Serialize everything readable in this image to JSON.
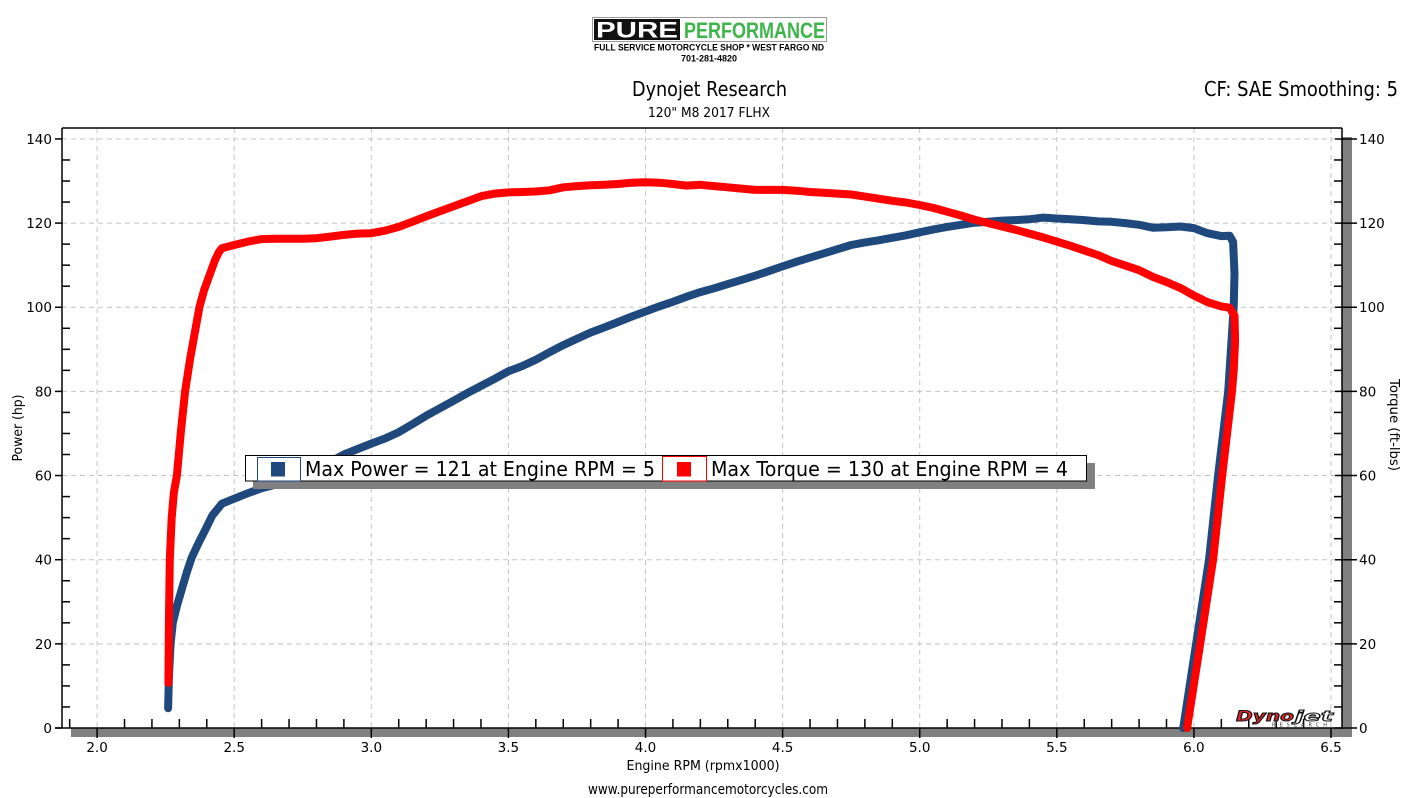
{
  "header": {
    "logo": {
      "pure": "PURE",
      "performance": "PERFORMANCE",
      "tagline": "FULL SERVICE MOTORCYCLE SHOP * WEST FARGO ND",
      "phone": "701-281-4820",
      "green": "#3db54a"
    },
    "title": "Dynojet Research",
    "subtitle": "120\" M8 2017 FLHX",
    "correction": "CF: SAE Smoothing: 5"
  },
  "legend": {
    "items": [
      {
        "label": "Max Power = 121 at Engine RPM = 5",
        "color": "#1f497d"
      },
      {
        "label": "Max Torque = 130 at Engine RPM = 4",
        "color": "#ff0000"
      }
    ]
  },
  "watermark": {
    "dyno": "Dyno",
    "jet": "jet",
    "research": "RESEARCH"
  },
  "footer": {
    "url": "www.pureperformancemotorcycles.com"
  },
  "chart_data": {
    "type": "line",
    "title": "Dynojet Research",
    "subtitle": "120\" M8 2017 FLHX",
    "xlabel": "Engine RPM (rpmx1000)",
    "ylabel": "Power (hp)",
    "y2label": "Torque (ft-lbs)",
    "xlim": [
      1.872,
      6.54
    ],
    "ylim": [
      0,
      142.6
    ],
    "y2lim": [
      0,
      142.6
    ],
    "xticks": [
      2.0,
      2.5,
      3.0,
      3.5,
      4.0,
      4.5,
      5.0,
      5.5,
      6.0,
      6.5
    ],
    "xtick_labels": [
      "2.0",
      "2.5",
      "3.0",
      "3.5",
      "4.0",
      "4.5",
      "5.0",
      "5.5",
      "6.0",
      "6.5"
    ],
    "yticks": [
      0,
      20,
      40,
      60,
      80,
      100,
      120,
      140
    ],
    "ytick_labels": [
      "0",
      "20",
      "40",
      "60",
      "80",
      "100",
      "120",
      "140"
    ],
    "y2ticks": [
      0,
      20,
      40,
      60,
      80,
      100,
      120,
      140
    ],
    "y2tick_labels": [
      "0",
      "20",
      "40",
      "60",
      "80",
      "100",
      "120",
      "140"
    ],
    "grid": true,
    "legend_position": "inside-middle",
    "annotations": [
      "Max Power = 121 at Engine RPM = 5",
      "Max Torque = 130 at Engine RPM = 4"
    ],
    "series": [
      {
        "name": "Power (hp)",
        "axis": "left",
        "color": "#1f497d",
        "points": [
          [
            2.259,
            4.7
          ],
          [
            2.262,
            12
          ],
          [
            2.268,
            20
          ],
          [
            2.276,
            25
          ],
          [
            2.291,
            29
          ],
          [
            2.309,
            33
          ],
          [
            2.327,
            37
          ],
          [
            2.345,
            40.5
          ],
          [
            2.37,
            44
          ],
          [
            2.394,
            47
          ],
          [
            2.42,
            50.5
          ],
          [
            2.455,
            53.3
          ],
          [
            2.5,
            54.5
          ],
          [
            2.55,
            55.8
          ],
          [
            2.6,
            57
          ],
          [
            2.65,
            57.8
          ],
          [
            2.7,
            59
          ],
          [
            2.75,
            60.2
          ],
          [
            2.8,
            61.8
          ],
          [
            2.85,
            63.3
          ],
          [
            2.9,
            65
          ],
          [
            2.95,
            66.3
          ],
          [
            3.0,
            67.6
          ],
          [
            3.05,
            68.8
          ],
          [
            3.1,
            70.3
          ],
          [
            3.15,
            72.2
          ],
          [
            3.2,
            74.2
          ],
          [
            3.25,
            76
          ],
          [
            3.3,
            77.8
          ],
          [
            3.35,
            79.6
          ],
          [
            3.4,
            81.3
          ],
          [
            3.45,
            83
          ],
          [
            3.5,
            84.8
          ],
          [
            3.55,
            86
          ],
          [
            3.6,
            87.5
          ],
          [
            3.65,
            89.3
          ],
          [
            3.7,
            91
          ],
          [
            3.75,
            92.5
          ],
          [
            3.8,
            94
          ],
          [
            3.85,
            95.2
          ],
          [
            3.9,
            96.5
          ],
          [
            3.95,
            97.8
          ],
          [
            4.0,
            99
          ],
          [
            4.05,
            100.2
          ],
          [
            4.1,
            101.3
          ],
          [
            4.15,
            102.5
          ],
          [
            4.2,
            103.6
          ],
          [
            4.25,
            104.5
          ],
          [
            4.3,
            105.5
          ],
          [
            4.35,
            106.5
          ],
          [
            4.4,
            107.5
          ],
          [
            4.45,
            108.6
          ],
          [
            4.5,
            109.7
          ],
          [
            4.55,
            110.8
          ],
          [
            4.6,
            111.8
          ],
          [
            4.65,
            112.8
          ],
          [
            4.7,
            113.8
          ],
          [
            4.75,
            114.8
          ],
          [
            4.8,
            115.4
          ],
          [
            4.85,
            115.9
          ],
          [
            4.9,
            116.5
          ],
          [
            4.95,
            117.1
          ],
          [
            5.0,
            117.8
          ],
          [
            5.05,
            118.5
          ],
          [
            5.1,
            119.1
          ],
          [
            5.15,
            119.6
          ],
          [
            5.2,
            120.1
          ],
          [
            5.25,
            120.3
          ],
          [
            5.3,
            120.6
          ],
          [
            5.35,
            120.7
          ],
          [
            5.4,
            120.9
          ],
          [
            5.45,
            121.3
          ],
          [
            5.5,
            121.1
          ],
          [
            5.55,
            120.9
          ],
          [
            5.6,
            120.7
          ],
          [
            5.65,
            120.4
          ],
          [
            5.7,
            120.3
          ],
          [
            5.75,
            120.0
          ],
          [
            5.8,
            119.6
          ],
          [
            5.85,
            118.9
          ],
          [
            5.9,
            119.0
          ],
          [
            5.95,
            119.2
          ],
          [
            6.0,
            118.8
          ],
          [
            6.05,
            117.6
          ],
          [
            6.1,
            116.9
          ],
          [
            6.13,
            117.0
          ],
          [
            6.143,
            115.5
          ],
          [
            6.148,
            108
          ],
          [
            6.145,
            100
          ],
          [
            6.125,
            80
          ],
          [
            6.088,
            60
          ],
          [
            6.055,
            40
          ],
          [
            6.008,
            20
          ],
          [
            5.961,
            0
          ]
        ]
      },
      {
        "name": "Torque (ft-lbs)",
        "axis": "right",
        "color": "#ff0000",
        "points": [
          [
            2.26,
            10.7
          ],
          [
            2.262,
            25
          ],
          [
            2.265,
            40
          ],
          [
            2.272,
            50
          ],
          [
            2.28,
            56
          ],
          [
            2.291,
            60
          ],
          [
            2.305,
            70
          ],
          [
            2.321,
            80
          ],
          [
            2.34,
            88
          ],
          [
            2.358,
            94.6
          ],
          [
            2.373,
            100
          ],
          [
            2.39,
            104
          ],
          [
            2.412,
            108
          ],
          [
            2.43,
            111.2
          ],
          [
            2.445,
            113.2
          ],
          [
            2.455,
            114
          ],
          [
            2.5,
            114.8
          ],
          [
            2.55,
            115.6
          ],
          [
            2.6,
            116.2
          ],
          [
            2.65,
            116.3
          ],
          [
            2.7,
            116.3
          ],
          [
            2.75,
            116.3
          ],
          [
            2.8,
            116.4
          ],
          [
            2.85,
            116.8
          ],
          [
            2.9,
            117.2
          ],
          [
            2.95,
            117.5
          ],
          [
            3.0,
            117.6
          ],
          [
            3.05,
            118.2
          ],
          [
            3.1,
            119.1
          ],
          [
            3.15,
            120.3
          ],
          [
            3.2,
            121.6
          ],
          [
            3.25,
            122.8
          ],
          [
            3.3,
            124.0
          ],
          [
            3.35,
            125.2
          ],
          [
            3.4,
            126.4
          ],
          [
            3.45,
            127.0
          ],
          [
            3.5,
            127.3
          ],
          [
            3.55,
            127.4
          ],
          [
            3.6,
            127.5
          ],
          [
            3.65,
            127.8
          ],
          [
            3.7,
            128.5
          ],
          [
            3.75,
            128.8
          ],
          [
            3.8,
            129.0
          ],
          [
            3.85,
            129.1
          ],
          [
            3.9,
            129.3
          ],
          [
            3.95,
            129.6
          ],
          [
            4.0,
            129.7
          ],
          [
            4.05,
            129.6
          ],
          [
            4.1,
            129.3
          ],
          [
            4.15,
            128.9
          ],
          [
            4.2,
            129.1
          ],
          [
            4.25,
            128.8
          ],
          [
            4.3,
            128.5
          ],
          [
            4.35,
            128.2
          ],
          [
            4.4,
            127.9
          ],
          [
            4.45,
            127.9
          ],
          [
            4.5,
            127.9
          ],
          [
            4.55,
            127.7
          ],
          [
            4.6,
            127.4
          ],
          [
            4.65,
            127.2
          ],
          [
            4.7,
            127.0
          ],
          [
            4.75,
            126.8
          ],
          [
            4.8,
            126.3
          ],
          [
            4.85,
            125.8
          ],
          [
            4.9,
            125.3
          ],
          [
            4.95,
            124.9
          ],
          [
            5.0,
            124.3
          ],
          [
            5.05,
            123.6
          ],
          [
            5.1,
            122.7
          ],
          [
            5.15,
            121.8
          ],
          [
            5.2,
            120.8
          ],
          [
            5.25,
            120.0
          ],
          [
            5.3,
            119.2
          ],
          [
            5.35,
            118.4
          ],
          [
            5.4,
            117.5
          ],
          [
            5.45,
            116.6
          ],
          [
            5.5,
            115.6
          ],
          [
            5.55,
            114.6
          ],
          [
            5.6,
            113.5
          ],
          [
            5.65,
            112.4
          ],
          [
            5.7,
            111.0
          ],
          [
            5.75,
            109.9
          ],
          [
            5.8,
            108.8
          ],
          [
            5.85,
            107.2
          ],
          [
            5.9,
            106.0
          ],
          [
            5.95,
            104.6
          ],
          [
            6.0,
            102.8
          ],
          [
            6.05,
            101.2
          ],
          [
            6.1,
            100.2
          ],
          [
            6.13,
            99.9
          ],
          [
            6.148,
            98
          ],
          [
            6.15,
            92
          ],
          [
            6.145,
            85
          ],
          [
            6.139,
            80
          ],
          [
            6.103,
            60
          ],
          [
            6.07,
            40
          ],
          [
            6.023,
            20
          ],
          [
            5.975,
            0
          ]
        ]
      }
    ]
  }
}
